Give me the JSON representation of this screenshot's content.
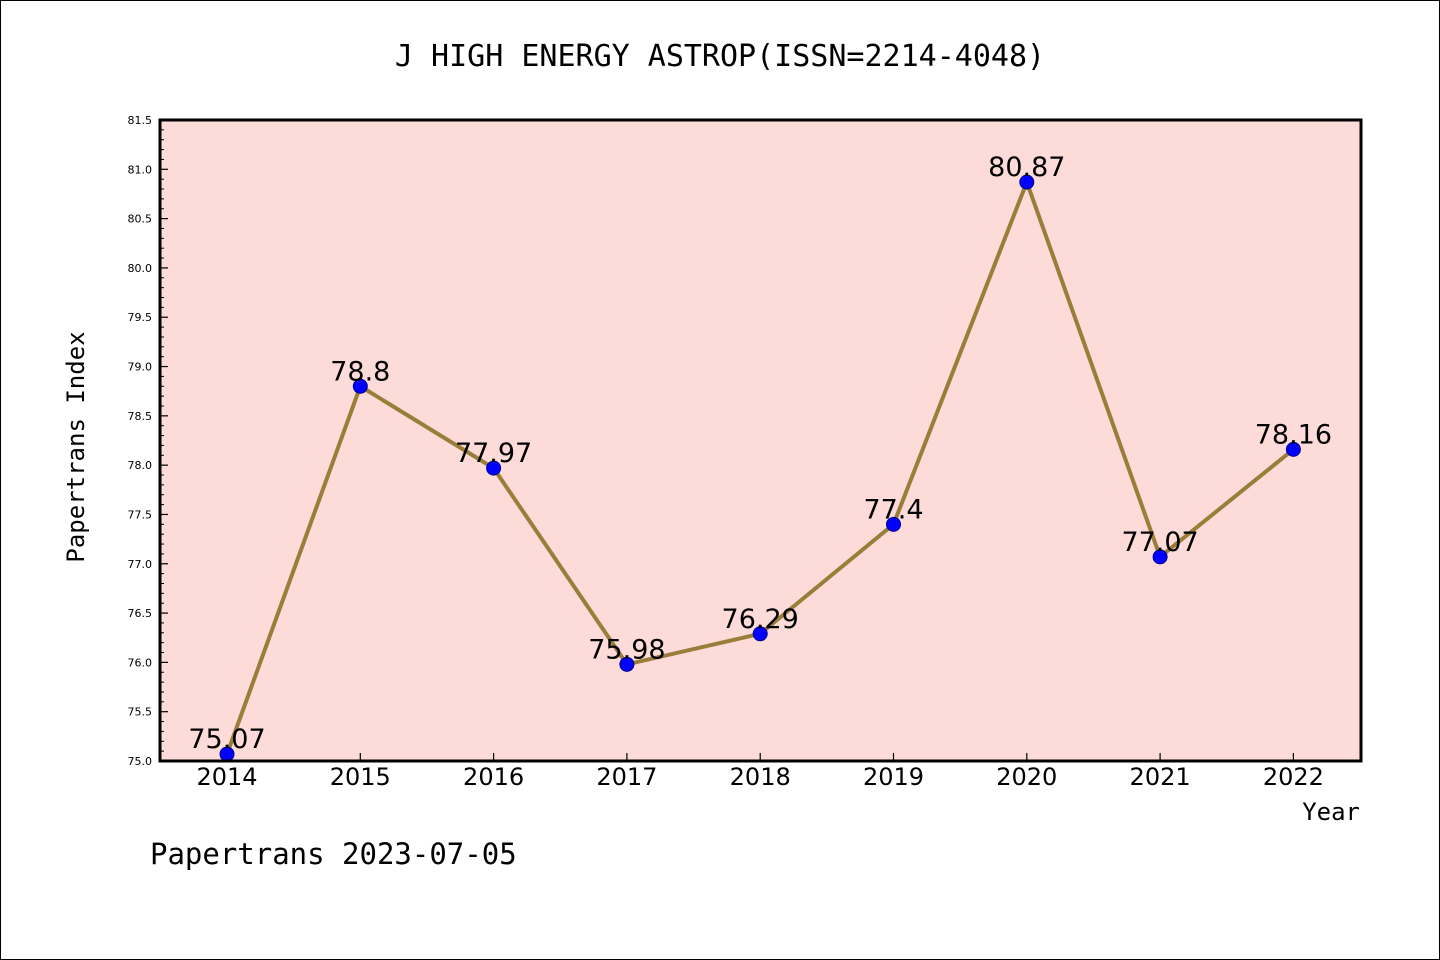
{
  "chart_data": {
    "type": "line",
    "title": "J HIGH ENERGY ASTROP(ISSN=2214-4048)",
    "xlabel": "Year",
    "ylabel": "Papertrans Index",
    "categories": [
      "2014",
      "2015",
      "2016",
      "2017",
      "2018",
      "2019",
      "2020",
      "2021",
      "2022"
    ],
    "series": [
      {
        "values": [
          75.07,
          78.8,
          77.97,
          75.98,
          76.29,
          77.4,
          80.87,
          77.07,
          78.16
        ]
      }
    ],
    "data_labels": [
      "75.07",
      "78.8",
      "77.97",
      "75.98",
      "76.29",
      "77.4",
      "80.87",
      "77.07",
      "78.16"
    ],
    "ylim": [
      75.0,
      81.5
    ],
    "yticks": [
      "75.0",
      "75.5",
      "76.0",
      "76.5",
      "77.0",
      "77.5",
      "78.0",
      "78.5",
      "79.0",
      "79.5",
      "80.0",
      "80.5",
      "81.0",
      "81.5"
    ],
    "grid": false,
    "legend": "none",
    "colors": {
      "plot_background": "#fddbd8",
      "line": "#9b7d3a",
      "marker": "#0000ff",
      "frame": "#000000"
    }
  },
  "footer": "Papertrans 2023-07-05"
}
